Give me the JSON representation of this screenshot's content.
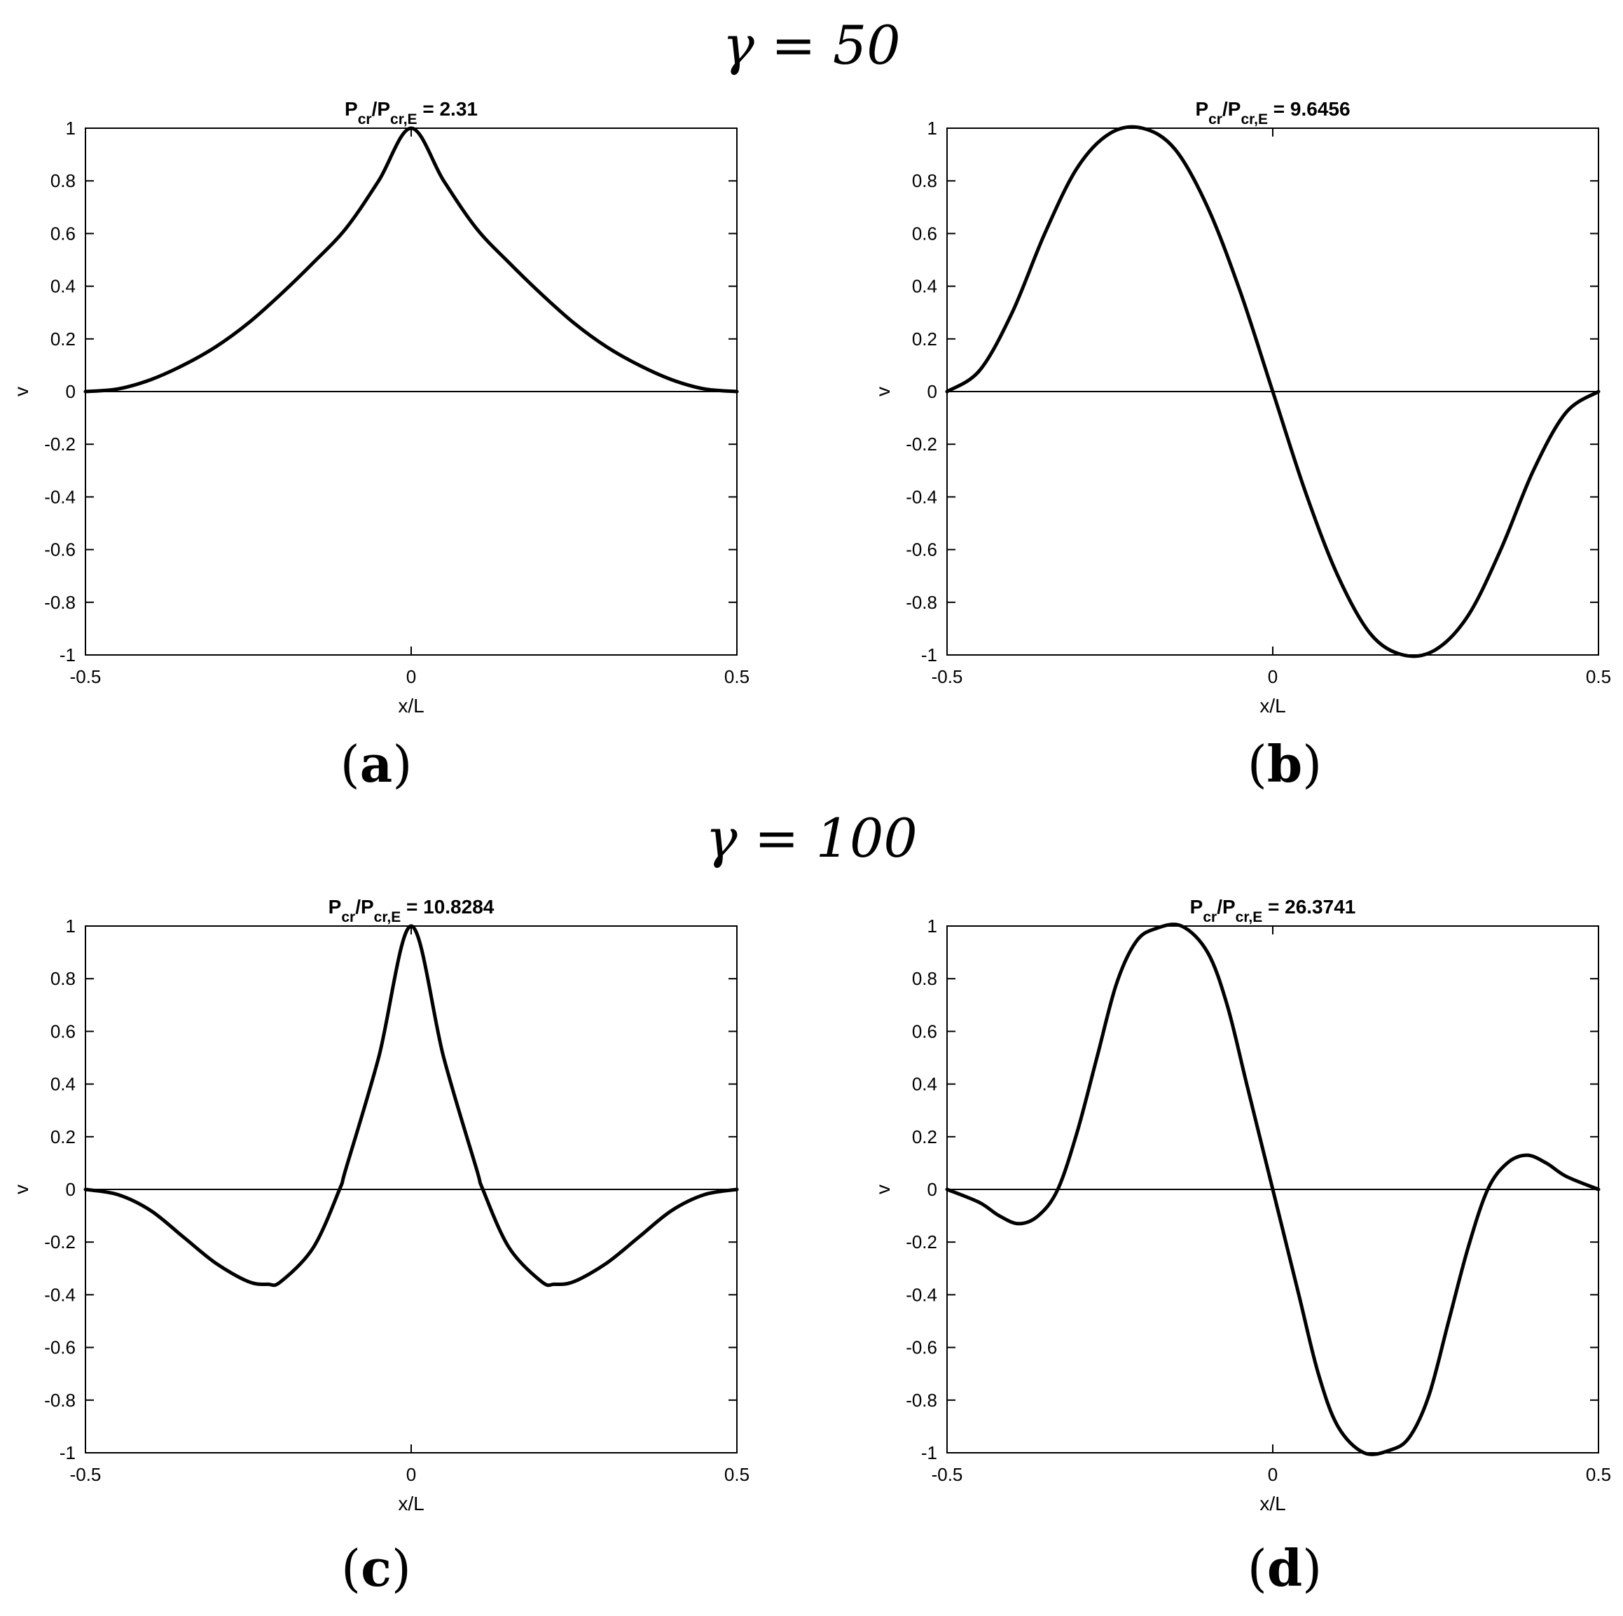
{
  "section_titles": [
    "γ = 50",
    "γ = 100"
  ],
  "chart_data": [
    {
      "type": "line",
      "panel_label": "a",
      "title": {
        "prefix": "P",
        "sub1": "cr",
        "mid": "/P",
        "sub2": "cr,E",
        "value": " = 2.31"
      },
      "xlabel": "x/L",
      "ylabel": "v",
      "xlim": [
        -0.5,
        0.5
      ],
      "ylim": [
        -1,
        1
      ],
      "xticks": [
        -0.5,
        0,
        0.5
      ],
      "yticks": [
        -1,
        -0.8,
        -0.6,
        -0.4,
        -0.2,
        0,
        0.2,
        0.4,
        0.6,
        0.8,
        1
      ],
      "zero_line": true,
      "grid": false,
      "series": [
        {
          "x": [
            -0.5,
            -0.45,
            -0.4,
            -0.35,
            -0.3,
            -0.25,
            -0.2,
            -0.15,
            -0.1,
            -0.05,
            0,
            0.05,
            0.1,
            0.15,
            0.2,
            0.25,
            0.3,
            0.35,
            0.4,
            0.45,
            0.5
          ],
          "y": [
            0,
            0.01,
            0.045,
            0.1,
            0.17,
            0.26,
            0.37,
            0.49,
            0.62,
            0.8,
            1,
            0.8,
            0.62,
            0.49,
            0.37,
            0.26,
            0.17,
            0.1,
            0.045,
            0.01,
            0
          ]
        }
      ]
    },
    {
      "type": "line",
      "panel_label": "b",
      "title": {
        "prefix": "P",
        "sub1": "cr",
        "mid": "/P",
        "sub2": "cr,E",
        "value": " = 9.6456"
      },
      "xlabel": "x/L",
      "ylabel": "v",
      "xlim": [
        -0.5,
        0.5
      ],
      "ylim": [
        -1,
        1
      ],
      "xticks": [
        -0.5,
        0,
        0.5
      ],
      "yticks": [
        -1,
        -0.8,
        -0.6,
        -0.4,
        -0.2,
        0,
        0.2,
        0.4,
        0.6,
        0.8,
        1
      ],
      "zero_line": true,
      "grid": false,
      "series": [
        {
          "x": [
            -0.5,
            -0.45,
            -0.4,
            -0.35,
            -0.3,
            -0.25,
            -0.2,
            -0.15,
            -0.1,
            -0.05,
            0,
            0.05,
            0.1,
            0.15,
            0.2,
            0.25,
            0.3,
            0.35,
            0.4,
            0.45,
            0.5
          ],
          "y": [
            0,
            0.08,
            0.3,
            0.6,
            0.85,
            0.98,
            1,
            0.92,
            0.7,
            0.38,
            0,
            -0.38,
            -0.7,
            -0.92,
            -1,
            -0.98,
            -0.85,
            -0.6,
            -0.3,
            -0.08,
            0
          ]
        }
      ]
    },
    {
      "type": "line",
      "panel_label": "c",
      "title": {
        "prefix": "P",
        "sub1": "cr",
        "mid": "/P",
        "sub2": "cr,E",
        "value": " = 10.8284"
      },
      "xlabel": "x/L",
      "ylabel": "v",
      "xlim": [
        -0.5,
        0.5
      ],
      "ylim": [
        -1,
        1
      ],
      "xticks": [
        -0.5,
        0,
        0.5
      ],
      "yticks": [
        -1,
        -0.8,
        -0.6,
        -0.4,
        -0.2,
        0,
        0.2,
        0.4,
        0.6,
        0.8,
        1
      ],
      "zero_line": true,
      "grid": false,
      "series": [
        {
          "x": [
            -0.5,
            -0.45,
            -0.4,
            -0.35,
            -0.3,
            -0.25,
            -0.22,
            -0.2,
            -0.15,
            -0.11,
            -0.1,
            -0.05,
            0,
            0.05,
            0.1,
            0.11,
            0.15,
            0.2,
            0.22,
            0.25,
            0.3,
            0.35,
            0.4,
            0.45,
            0.5
          ],
          "y": [
            0,
            -0.02,
            -0.08,
            -0.18,
            -0.28,
            -0.35,
            -0.36,
            -0.35,
            -0.22,
            0,
            0.08,
            0.5,
            1,
            0.5,
            0.08,
            0,
            -0.22,
            -0.35,
            -0.36,
            -0.35,
            -0.28,
            -0.18,
            -0.08,
            -0.02,
            0
          ]
        }
      ]
    },
    {
      "type": "line",
      "panel_label": "d",
      "title": {
        "prefix": "P",
        "sub1": "cr",
        "mid": "/P",
        "sub2": "cr,E",
        "value": " = 26.3741"
      },
      "xlabel": "x/L",
      "ylabel": "v",
      "xlim": [
        -0.5,
        0.5
      ],
      "ylim": [
        -1,
        1
      ],
      "xticks": [
        -0.5,
        0,
        0.5
      ],
      "yticks": [
        -1,
        -0.8,
        -0.6,
        -0.4,
        -0.2,
        0,
        0.2,
        0.4,
        0.6,
        0.8,
        1
      ],
      "zero_line": true,
      "grid": false,
      "series": [
        {
          "x": [
            -0.5,
            -0.45,
            -0.42,
            -0.39,
            -0.36,
            -0.33,
            -0.3,
            -0.27,
            -0.24,
            -0.21,
            -0.18,
            -0.14,
            -0.1,
            -0.07,
            -0.04,
            0,
            0.04,
            0.07,
            0.1,
            0.14,
            0.18,
            0.21,
            0.24,
            0.27,
            0.3,
            0.33,
            0.36,
            0.39,
            0.42,
            0.45,
            0.5
          ],
          "y": [
            0,
            -0.05,
            -0.1,
            -0.13,
            -0.1,
            0,
            0.22,
            0.5,
            0.78,
            0.94,
            0.99,
            1,
            0.9,
            0.7,
            0.4,
            0,
            -0.4,
            -0.7,
            -0.9,
            -1,
            -0.99,
            -0.94,
            -0.78,
            -0.5,
            -0.22,
            0,
            0.1,
            0.13,
            0.1,
            0.05,
            0
          ]
        }
      ]
    }
  ]
}
